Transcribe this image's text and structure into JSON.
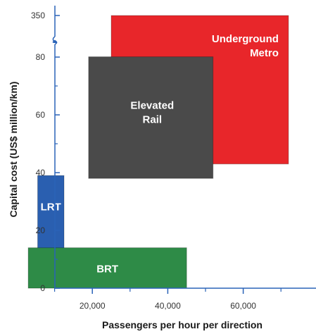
{
  "chart_data": {
    "type": "bar",
    "title": "",
    "xlabel": "Passengers per hour per direction",
    "ylabel": "Capital cost (US$ million/km)",
    "xlim": [
      0,
      72000
    ],
    "ylim": [
      0,
      350
    ],
    "axis_break": {
      "between": [
        80,
        350
      ]
    },
    "x_ticks": [
      {
        "value": 20000,
        "label": "20,000"
      },
      {
        "value": 40000,
        "label": "40,000"
      },
      {
        "value": 60000,
        "label": "60,000"
      }
    ],
    "y_ticks": [
      {
        "value": 0,
        "label": "0"
      },
      {
        "value": 20,
        "label": "20"
      },
      {
        "value": 40,
        "label": "40"
      },
      {
        "value": 60,
        "label": "60"
      },
      {
        "value": 80,
        "label": "80"
      },
      {
        "value": 350,
        "label": "350"
      }
    ],
    "grid": false,
    "series": [
      {
        "name": "BRT",
        "label_lines": [
          "BRT"
        ],
        "color": "#2e8b47",
        "x_range": [
          3000,
          45000
        ],
        "y_range": [
          0,
          14
        ]
      },
      {
        "name": "LRT",
        "label_lines": [
          "LRT"
        ],
        "color": "#2a5fb0",
        "x_range": [
          5500,
          12500
        ],
        "y_range": [
          12,
          39
        ]
      },
      {
        "name": "Elevated Rail",
        "label_lines": [
          "Elevated",
          "Rail"
        ],
        "color": "#4a4a4a",
        "x_range": [
          19000,
          52000
        ],
        "y_range": [
          38,
          82
        ]
      },
      {
        "name": "Underground Metro",
        "label_lines": [
          "Underground",
          "Metro"
        ],
        "color": "#e8262a",
        "x_range": [
          25000,
          72000
        ],
        "y_range": [
          43,
          350
        ]
      }
    ]
  }
}
